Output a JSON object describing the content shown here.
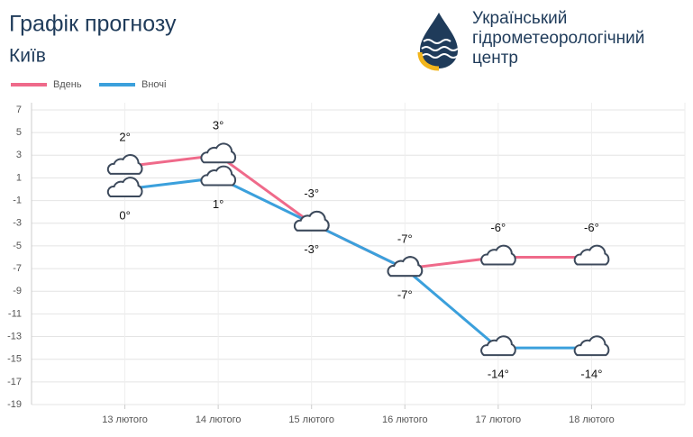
{
  "header": {
    "title": "Графік прогнозу",
    "city": "Київ",
    "logo_lines": [
      "Український",
      "гідрометеорологічний",
      "центр"
    ]
  },
  "chart_data": {
    "type": "line",
    "categories": [
      "13 лютого",
      "14 лютого",
      "15 лютого",
      "16 лютого",
      "17 лютого",
      "18 лютого"
    ],
    "series": [
      {
        "name": "Вдень",
        "color": "#ef6a8a",
        "values": [
          2,
          3,
          -3,
          -7,
          -6,
          -6
        ],
        "value_labels": [
          "2°",
          "3°",
          "-3°",
          "-7°",
          "-6°",
          "-6°"
        ]
      },
      {
        "name": "Вночі",
        "color": "#3ba0dc",
        "values": [
          0,
          1,
          -3,
          -7,
          -14,
          -14
        ],
        "value_labels": [
          "0°",
          "1°",
          "-3°",
          "-7°",
          "-14°",
          "-14°"
        ]
      }
    ],
    "ylim": [
      -19,
      7
    ],
    "yticks": [
      7,
      5,
      3,
      1,
      -1,
      -3,
      -5,
      -7,
      -9,
      -11,
      -13,
      -15,
      -17,
      -19
    ],
    "grid": true
  }
}
